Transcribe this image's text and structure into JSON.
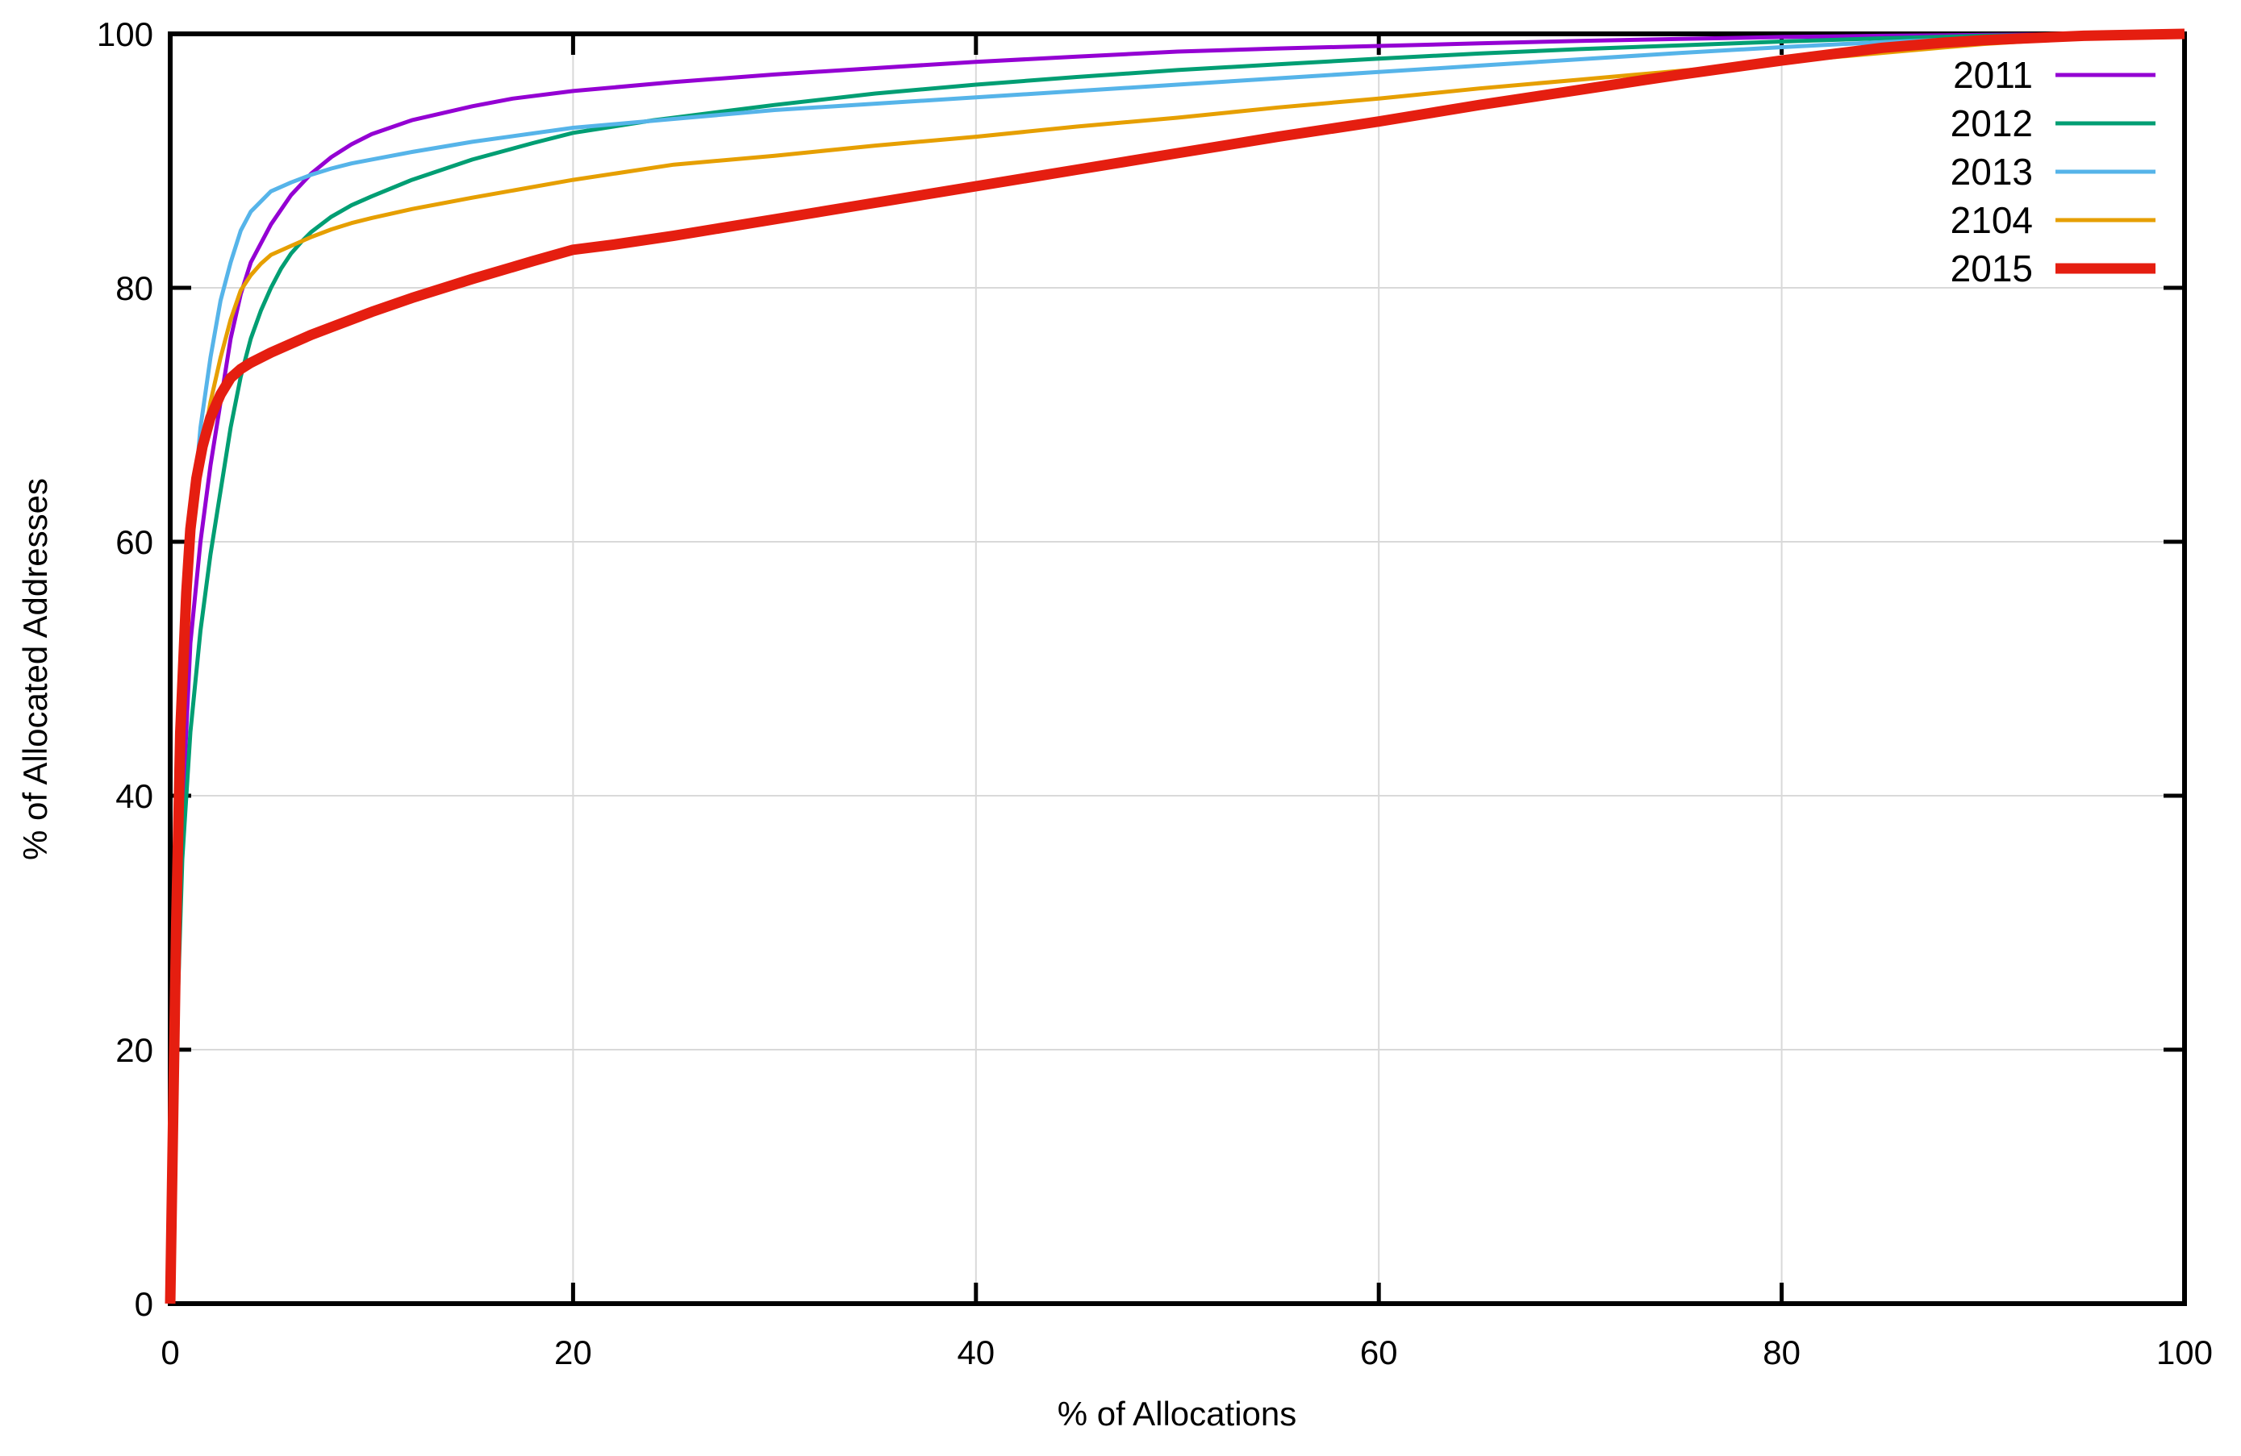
{
  "page": {
    "background": "#ffffff"
  },
  "chart_data": {
    "type": "line",
    "title": "",
    "xlabel": "% of Allocations",
    "ylabel": "% of Allocated Addresses",
    "xlim": [
      0,
      100
    ],
    "ylim": [
      0,
      100
    ],
    "xticks": [
      0,
      20,
      40,
      60,
      80,
      100
    ],
    "yticks": [
      0,
      20,
      40,
      60,
      80,
      100
    ],
    "grid": true,
    "grid_color": "#d9d9d9",
    "axis_color": "#000000",
    "legend_position": "top-right-inside",
    "series": [
      {
        "name": "2011",
        "color": "#9400d3",
        "width": 5,
        "points": [
          [
            0,
            0
          ],
          [
            0.2,
            12
          ],
          [
            0.5,
            35
          ],
          [
            1,
            52
          ],
          [
            1.5,
            60
          ],
          [
            2,
            66
          ],
          [
            2.5,
            71
          ],
          [
            3,
            76
          ],
          [
            3.5,
            79.5
          ],
          [
            4,
            82
          ],
          [
            5,
            85
          ],
          [
            6,
            87.3
          ],
          [
            7,
            89
          ],
          [
            8,
            90.3
          ],
          [
            9,
            91.3
          ],
          [
            10,
            92.1
          ],
          [
            12,
            93.2
          ],
          [
            15,
            94.3
          ],
          [
            17,
            94.9
          ],
          [
            20,
            95.5
          ],
          [
            25,
            96.2
          ],
          [
            30,
            96.8
          ],
          [
            35,
            97.3
          ],
          [
            40,
            97.8
          ],
          [
            45,
            98.2
          ],
          [
            50,
            98.6
          ],
          [
            55,
            98.85
          ],
          [
            60,
            99.05
          ],
          [
            65,
            99.25
          ],
          [
            70,
            99.45
          ],
          [
            75,
            99.6
          ],
          [
            80,
            99.75
          ],
          [
            85,
            99.85
          ],
          [
            90,
            99.92
          ],
          [
            95,
            99.97
          ],
          [
            100,
            100
          ]
        ]
      },
      {
        "name": "2012",
        "color": "#009e73",
        "width": 5,
        "points": [
          [
            0,
            0
          ],
          [
            0.3,
            20
          ],
          [
            0.6,
            35
          ],
          [
            1,
            45
          ],
          [
            1.5,
            53
          ],
          [
            2,
            59
          ],
          [
            2.5,
            64
          ],
          [
            3,
            69
          ],
          [
            3.5,
            73
          ],
          [
            4,
            76
          ],
          [
            4.5,
            78.2
          ],
          [
            5,
            80
          ],
          [
            5.5,
            81.5
          ],
          [
            6,
            82.7
          ],
          [
            6.5,
            83.6
          ],
          [
            7,
            84.4
          ],
          [
            8,
            85.6
          ],
          [
            9,
            86.5
          ],
          [
            10,
            87.2
          ],
          [
            12,
            88.5
          ],
          [
            15,
            90.1
          ],
          [
            18,
            91.4
          ],
          [
            20,
            92.2
          ],
          [
            24,
            93.2
          ],
          [
            25,
            93.4
          ],
          [
            30,
            94.4
          ],
          [
            35,
            95.3
          ],
          [
            40,
            96
          ],
          [
            45,
            96.6
          ],
          [
            50,
            97.15
          ],
          [
            55,
            97.6
          ],
          [
            60,
            98.05
          ],
          [
            65,
            98.45
          ],
          [
            70,
            98.8
          ],
          [
            75,
            99.1
          ],
          [
            80,
            99.4
          ],
          [
            85,
            99.65
          ],
          [
            90,
            99.85
          ],
          [
            95,
            99.95
          ],
          [
            100,
            100
          ]
        ]
      },
      {
        "name": "2013",
        "color": "#56b4e9",
        "width": 5,
        "points": [
          [
            0,
            0
          ],
          [
            0.3,
            30
          ],
          [
            0.6,
            48
          ],
          [
            1,
            60
          ],
          [
            1.5,
            69
          ],
          [
            2,
            74.5
          ],
          [
            2.5,
            79
          ],
          [
            3,
            82
          ],
          [
            3.5,
            84.5
          ],
          [
            4,
            86
          ],
          [
            5,
            87.6
          ],
          [
            6,
            88.3
          ],
          [
            7,
            88.9
          ],
          [
            8,
            89.4
          ],
          [
            9,
            89.8
          ],
          [
            10,
            90.1
          ],
          [
            12,
            90.7
          ],
          [
            15,
            91.5
          ],
          [
            20,
            92.6
          ],
          [
            25,
            93.3
          ],
          [
            30,
            94
          ],
          [
            35,
            94.5
          ],
          [
            40,
            95
          ],
          [
            45,
            95.5
          ],
          [
            50,
            96
          ],
          [
            55,
            96.5
          ],
          [
            60,
            97
          ],
          [
            65,
            97.5
          ],
          [
            70,
            98
          ],
          [
            75,
            98.5
          ],
          [
            80,
            98.95
          ],
          [
            85,
            99.35
          ],
          [
            90,
            99.65
          ],
          [
            95,
            99.85
          ],
          [
            100,
            100
          ]
        ]
      },
      {
        "name": "2104",
        "color": "#e69f00",
        "width": 5,
        "points": [
          [
            0,
            0
          ],
          [
            0.2,
            25
          ],
          [
            0.5,
            45
          ],
          [
            0.8,
            55
          ],
          [
            1,
            60
          ],
          [
            1.5,
            66.5
          ],
          [
            2,
            71
          ],
          [
            2.5,
            74.5
          ],
          [
            3,
            77.5
          ],
          [
            3.5,
            79.8
          ],
          [
            4,
            81
          ],
          [
            4.5,
            81.9
          ],
          [
            5,
            82.6
          ],
          [
            6,
            83.3
          ],
          [
            7,
            84
          ],
          [
            8,
            84.6
          ],
          [
            9,
            85.1
          ],
          [
            10,
            85.5
          ],
          [
            12,
            86.2
          ],
          [
            15,
            87.1
          ],
          [
            20,
            88.5
          ],
          [
            25,
            89.7
          ],
          [
            30,
            90.4
          ],
          [
            35,
            91.2
          ],
          [
            40,
            91.9
          ],
          [
            45,
            92.7
          ],
          [
            50,
            93.4
          ],
          [
            55,
            94.2
          ],
          [
            60,
            94.9
          ],
          [
            65,
            95.7
          ],
          [
            70,
            96.4
          ],
          [
            75,
            97.1
          ],
          [
            80,
            97.8
          ],
          [
            85,
            98.5
          ],
          [
            90,
            99.2
          ],
          [
            95,
            99.7
          ],
          [
            100,
            100
          ]
        ]
      },
      {
        "name": "2015",
        "color": "#e51e10",
        "width": 13,
        "points": [
          [
            0,
            0
          ],
          [
            0.15,
            15
          ],
          [
            0.3,
            30
          ],
          [
            0.5,
            45
          ],
          [
            0.8,
            56
          ],
          [
            1,
            61
          ],
          [
            1.3,
            65
          ],
          [
            1.6,
            67.5
          ],
          [
            2,
            69.8
          ],
          [
            2.5,
            71.6
          ],
          [
            3,
            72.9
          ],
          [
            3.5,
            73.6
          ],
          [
            4,
            74.1
          ],
          [
            5,
            74.9
          ],
          [
            6,
            75.6
          ],
          [
            7,
            76.3
          ],
          [
            8,
            76.9
          ],
          [
            10,
            78.1
          ],
          [
            12,
            79.2
          ],
          [
            15,
            80.7
          ],
          [
            18,
            82.1
          ],
          [
            20,
            83
          ],
          [
            22,
            83.4
          ],
          [
            25,
            84.1
          ],
          [
            30,
            85.4
          ],
          [
            35,
            86.7
          ],
          [
            40,
            88
          ],
          [
            45,
            89.3
          ],
          [
            50,
            90.6
          ],
          [
            55,
            91.9
          ],
          [
            60,
            93.1
          ],
          [
            65,
            94.4
          ],
          [
            70,
            95.6
          ],
          [
            75,
            96.8
          ],
          [
            80,
            97.9
          ],
          [
            83,
            98.5
          ],
          [
            85,
            98.9
          ],
          [
            88,
            99.3
          ],
          [
            90,
            99.5
          ],
          [
            95,
            99.85
          ],
          [
            100,
            100
          ]
        ]
      }
    ]
  }
}
